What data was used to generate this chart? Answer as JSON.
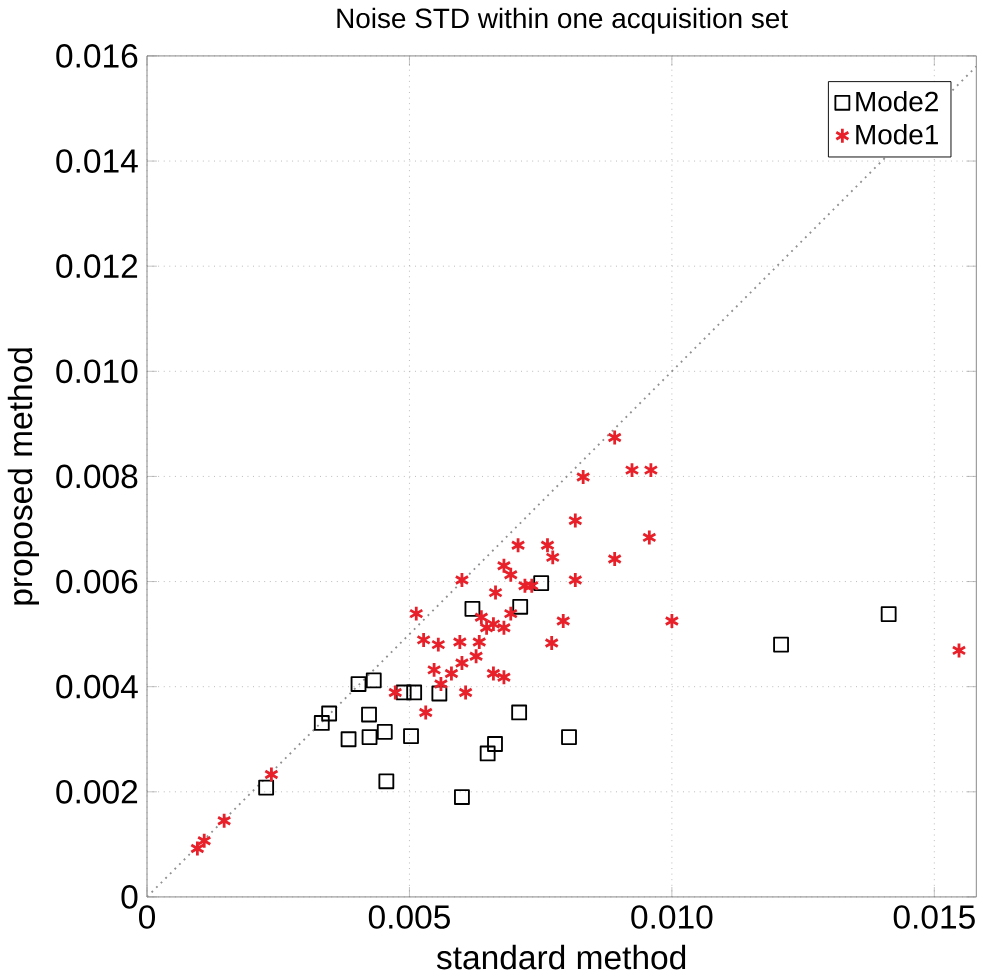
{
  "chart_data": {
    "type": "scatter",
    "title": "Noise STD within one acquisition set",
    "xlabel": "standard method",
    "ylabel": "proposed method",
    "xlim": [
      0,
      0.0158
    ],
    "ylim": [
      0,
      0.016
    ],
    "xticks": [
      {
        "value": 0,
        "label": "0"
      },
      {
        "value": 0.005,
        "label": "0.005"
      },
      {
        "value": 0.01,
        "label": "0.010"
      },
      {
        "value": 0.015,
        "label": "0.015"
      }
    ],
    "yticks": [
      {
        "value": 0,
        "label": "0"
      },
      {
        "value": 0.002,
        "label": "0.002"
      },
      {
        "value": 0.004,
        "label": "0.004"
      },
      {
        "value": 0.006,
        "label": "0.006"
      },
      {
        "value": 0.008,
        "label": "0.008"
      },
      {
        "value": 0.01,
        "label": "0.010"
      },
      {
        "value": 0.012,
        "label": "0.012"
      },
      {
        "value": 0.014,
        "label": "0.014"
      },
      {
        "value": 0.016,
        "label": "0.016"
      }
    ],
    "grid": true,
    "legend": "top right",
    "series": [
      {
        "name": "Mode2",
        "color": "#000000",
        "marker": "square",
        "x": [
          0.00227,
          0.00333,
          0.00347,
          0.00384,
          0.00403,
          0.00432,
          0.00423,
          0.00424,
          0.00453,
          0.00456,
          0.00489,
          0.00509,
          0.00503,
          0.00557,
          0.006,
          0.0062,
          0.00649,
          0.00663,
          0.00711,
          0.00709,
          0.00751,
          0.00804,
          0.01208,
          0.01413
        ],
        "values": [
          0.00208,
          0.00331,
          0.00349,
          0.003,
          0.00405,
          0.00412,
          0.00347,
          0.00304,
          0.00314,
          0.0022,
          0.00389,
          0.00389,
          0.00306,
          0.00387,
          0.0019,
          0.00548,
          0.00273,
          0.00291,
          0.00552,
          0.00351,
          0.00597,
          0.00304,
          0.0048,
          0.00538
        ]
      },
      {
        "name": "Mode1",
        "color": "#e8202a",
        "marker": "cross",
        "x": [
          0.00096,
          0.00109,
          0.00147,
          0.00237,
          0.00473,
          0.00513,
          0.00527,
          0.00555,
          0.00531,
          0.006,
          0.00596,
          0.00547,
          0.0056,
          0.0058,
          0.00607,
          0.006,
          0.00627,
          0.00633,
          0.00647,
          0.00637,
          0.00664,
          0.0066,
          0.0068,
          0.00693,
          0.0068,
          0.00693,
          0.00707,
          0.0072,
          0.00733,
          0.0066,
          0.0068,
          0.00763,
          0.00773,
          0.00771,
          0.00793,
          0.00816,
          0.00816,
          0.00831,
          0.00891,
          0.00891,
          0.00924,
          0.0096,
          0.00957,
          0.01,
          0.01547
        ],
        "values": [
          0.00092,
          0.00107,
          0.00145,
          0.00233,
          0.00389,
          0.00539,
          0.00489,
          0.0048,
          0.00351,
          0.00603,
          0.00485,
          0.00432,
          0.00405,
          0.00425,
          0.00389,
          0.00445,
          0.00458,
          0.00485,
          0.00512,
          0.00532,
          0.00579,
          0.00519,
          0.00512,
          0.00539,
          0.0063,
          0.00613,
          0.00669,
          0.00592,
          0.00592,
          0.00425,
          0.00418,
          0.00669,
          0.00646,
          0.00483,
          0.00525,
          0.00716,
          0.00603,
          0.00799,
          0.00874,
          0.00643,
          0.00812,
          0.00812,
          0.00684,
          0.00525,
          0.00469
        ]
      },
      {
        "type": "line",
        "color": "#909090",
        "line_style": "dotted",
        "marker": "none",
        "x": [
          0,
          0.0158
        ],
        "values": [
          0,
          0.0158
        ]
      }
    ]
  }
}
